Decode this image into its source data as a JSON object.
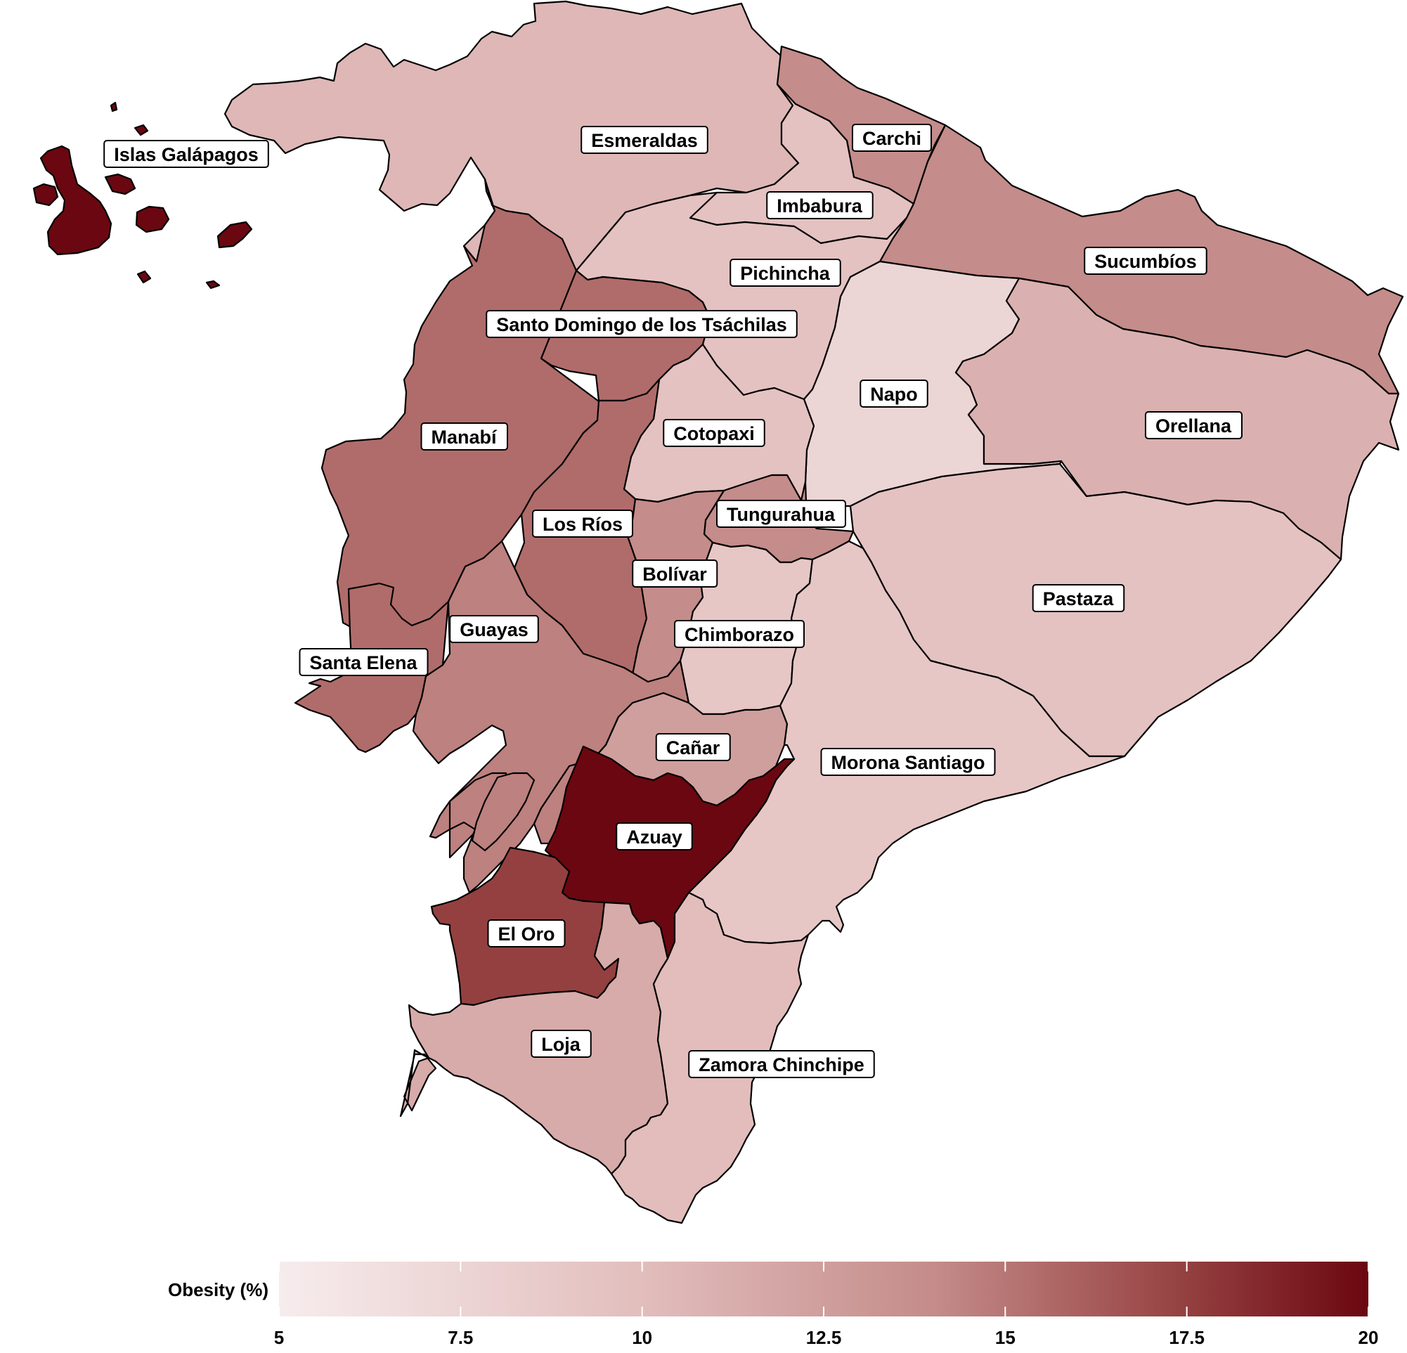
{
  "colors": {
    "scale_low": "#f7eced",
    "scale_mid": "#c48c8a",
    "scale_high": "#6b0710",
    "border": "#000000",
    "sea": "#ffffff"
  },
  "map": {
    "provinces": [
      {
        "id": "galapagos",
        "label": "Islas Galápagos",
        "obesity": 20.0
      },
      {
        "id": "esmeraldas",
        "label": "Esmeraldas",
        "obesity": 10.5
      },
      {
        "id": "carchi",
        "label": "Carchi",
        "obesity": 14.0
      },
      {
        "id": "imbabura",
        "label": "Imbabura",
        "obesity": 9.5
      },
      {
        "id": "sucumbios",
        "label": "Sucumbíos",
        "obesity": 14.0
      },
      {
        "id": "pichincha",
        "label": "Pichincha",
        "obesity": 9.5
      },
      {
        "id": "santodomingo",
        "label": "Santo Domingo de los Tsáchilas",
        "obesity": 15.5
      },
      {
        "id": "napo",
        "label": "Napo",
        "obesity": 7.5
      },
      {
        "id": "manabi",
        "label": "Manabí",
        "obesity": 15.5
      },
      {
        "id": "cotopaxi",
        "label": "Cotopaxi",
        "obesity": 9.5
      },
      {
        "id": "orellana",
        "label": "Orellana",
        "obesity": 11.0
      },
      {
        "id": "tungurahua",
        "label": "Tungurahua",
        "obesity": 14.0
      },
      {
        "id": "losrios",
        "label": "Los Ríos",
        "obesity": 15.5
      },
      {
        "id": "bolivar",
        "label": "Bolívar",
        "obesity": 14.0
      },
      {
        "id": "pastaza",
        "label": "Pastaza",
        "obesity": 9.5
      },
      {
        "id": "guayas",
        "label": "Guayas",
        "obesity": 14.5
      },
      {
        "id": "chimborazo",
        "label": "Chimborazo",
        "obesity": 9.0
      },
      {
        "id": "santaelena",
        "label": "Santa Elena",
        "obesity": 15.5
      },
      {
        "id": "canar",
        "label": "Cañar",
        "obesity": 12.5
      },
      {
        "id": "morona",
        "label": "Morona Santiago",
        "obesity": 9.0
      },
      {
        "id": "azuay",
        "label": "Azuay",
        "obesity": 20.0
      },
      {
        "id": "eloro",
        "label": "El Oro",
        "obesity": 17.5
      },
      {
        "id": "loja",
        "label": "Loja",
        "obesity": 11.5
      },
      {
        "id": "zamora",
        "label": "Zamora Chinchipe",
        "obesity": 10.0
      }
    ]
  },
  "legend": {
    "title": "Obesity (%)",
    "min": 5,
    "max": 20,
    "ticks": [
      "5",
      "7.5",
      "10",
      "12.5",
      "15",
      "17.5",
      "20"
    ]
  }
}
